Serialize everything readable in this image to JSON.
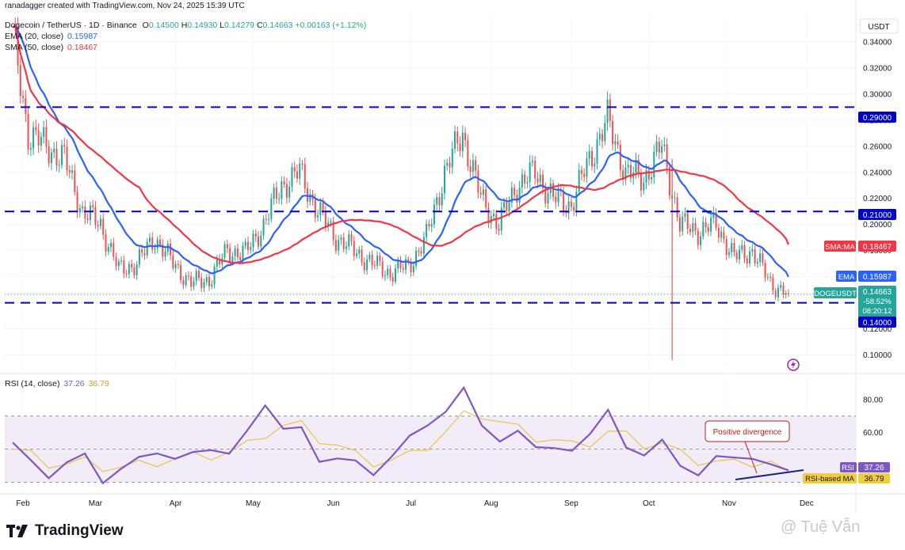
{
  "header": {
    "credit": "ranadagger created with TradingView.com, Nov 24, 2025 15:39 UTC",
    "symbol": "Dogecoin / TetherUS · 1D · Binance",
    "ohlc": {
      "o_label": "O",
      "o": "0.14500",
      "h_label": "H",
      "h": "0.14930",
      "l_label": "L",
      "l": "0.14279",
      "c_label": "C",
      "c": "0.14663",
      "change": "+0.00163 (+1.12%)"
    }
  },
  "indicators": {
    "ema": {
      "label": "EMA (20, close)",
      "value": "0.15987",
      "color": "#2962ff"
    },
    "sma": {
      "label": "SMA (50, close)",
      "value": "0.18467",
      "color": "#f23645"
    },
    "rsi": {
      "label": "RSI (14, close)",
      "value": "37.26",
      "ma_value": "36.79",
      "color": "#7e57c2",
      "ma_color": "#e8c547"
    }
  },
  "currency": "USDT",
  "price_tags": {
    "sma_label": "SMA:MA",
    "sma_value": "0.18467",
    "ema_label": "EMA",
    "ema_value": "0.15987",
    "symbol_label": "DOGEUSDT",
    "price": "0.14663",
    "change_pct": "-58.52%",
    "countdown": "08:20:12",
    "level_290": "0.29000",
    "level_210": "0.21000",
    "level_140": "0.14000",
    "rsi_label": "RSI",
    "rsi_value": "37.26",
    "rsi_ma_label": "RSI-based MA",
    "rsi_ma_value": "36.79"
  },
  "annotation": "Positive divergence",
  "brand": "TradingView",
  "watermark": "@ Tuệ Vẫn",
  "colors": {
    "up": "#26a69a",
    "down": "#ef5350",
    "support": "#0000cc",
    "ema": "#2962ff",
    "sma": "#f23645",
    "rsi": "#7e57c2",
    "rsi_ma": "#e8c547",
    "rsi_band": "#ede7f6"
  },
  "chart_data": [
    {
      "type": "candlestick",
      "title": "Dogecoin / TetherUS · 1D · Binance",
      "y_ticks": [
        "0.34000",
        "0.32000",
        "0.30000",
        "0.28000",
        "0.26000",
        "0.24000",
        "0.22000",
        "0.20000",
        "0.18000",
        "0.16000",
        "0.14000",
        "0.12000",
        "0.10000"
      ],
      "ylim": [
        0.09,
        0.36
      ],
      "x_tick_labels": [
        "Feb",
        "Mar",
        "Apr",
        "May",
        "Jun",
        "Jul",
        "Aug",
        "Sep",
        "Oct",
        "Nov",
        "Dec"
      ],
      "date_range": [
        "2025-01-28",
        "2025-11-24"
      ],
      "horizontal_levels": [
        0.29,
        0.21,
        0.14
      ],
      "close_series": [
        {
          "date": "2025-01-28",
          "close": 0.345
        },
        {
          "date": "2025-02-03",
          "close": 0.27
        },
        {
          "date": "2025-02-10",
          "close": 0.26
        },
        {
          "date": "2025-02-17",
          "close": 0.25
        },
        {
          "date": "2025-02-24",
          "close": 0.21
        },
        {
          "date": "2025-03-03",
          "close": 0.2
        },
        {
          "date": "2025-03-10",
          "close": 0.165
        },
        {
          "date": "2025-03-17",
          "close": 0.17
        },
        {
          "date": "2025-03-24",
          "close": 0.19
        },
        {
          "date": "2025-03-31",
          "close": 0.17
        },
        {
          "date": "2025-04-07",
          "close": 0.155
        },
        {
          "date": "2025-04-14",
          "close": 0.158
        },
        {
          "date": "2025-04-21",
          "close": 0.18
        },
        {
          "date": "2025-04-28",
          "close": 0.178
        },
        {
          "date": "2025-05-05",
          "close": 0.2
        },
        {
          "date": "2025-05-12",
          "close": 0.23
        },
        {
          "date": "2025-05-19",
          "close": 0.24
        },
        {
          "date": "2025-05-26",
          "close": 0.21
        },
        {
          "date": "2025-06-02",
          "close": 0.19
        },
        {
          "date": "2025-06-09",
          "close": 0.18
        },
        {
          "date": "2025-06-16",
          "close": 0.17
        },
        {
          "date": "2025-06-23",
          "close": 0.163
        },
        {
          "date": "2025-06-30",
          "close": 0.168
        },
        {
          "date": "2025-07-07",
          "close": 0.19
        },
        {
          "date": "2025-07-14",
          "close": 0.24
        },
        {
          "date": "2025-07-21",
          "close": 0.27
        },
        {
          "date": "2025-07-28",
          "close": 0.22
        },
        {
          "date": "2025-08-04",
          "close": 0.2
        },
        {
          "date": "2025-08-11",
          "close": 0.23
        },
        {
          "date": "2025-08-18",
          "close": 0.24
        },
        {
          "date": "2025-08-25",
          "close": 0.22
        },
        {
          "date": "2025-09-01",
          "close": 0.215
        },
        {
          "date": "2025-09-08",
          "close": 0.25
        },
        {
          "date": "2025-09-15",
          "close": 0.28
        },
        {
          "date": "2025-09-22",
          "close": 0.24
        },
        {
          "date": "2025-09-29",
          "close": 0.235
        },
        {
          "date": "2025-10-06",
          "close": 0.26
        },
        {
          "date": "2025-10-13",
          "close": 0.2
        },
        {
          "date": "2025-10-20",
          "close": 0.195
        },
        {
          "date": "2025-10-27",
          "close": 0.2
        },
        {
          "date": "2025-11-03",
          "close": 0.175
        },
        {
          "date": "2025-11-10",
          "close": 0.18
        },
        {
          "date": "2025-11-17",
          "close": 0.155
        },
        {
          "date": "2025-11-24",
          "close": 0.14663
        }
      ],
      "series": [
        {
          "name": "EMA (20, close)",
          "last": 0.15987
        },
        {
          "name": "SMA (50, close)",
          "last": 0.18467
        }
      ]
    },
    {
      "type": "line",
      "title": "RSI (14, close)",
      "y_ticks": [
        "80.00",
        "60.00",
        "40.00"
      ],
      "ylim": [
        25,
        88
      ],
      "band": [
        30,
        70
      ],
      "series": [
        {
          "name": "RSI (14, close)",
          "values": [
            54,
            40,
            36,
            42,
            44,
            33,
            38,
            42,
            51,
            44,
            45,
            53,
            47,
            58,
            80,
            62,
            60,
            46,
            44,
            40,
            38,
            45,
            55,
            68,
            72,
            84,
            68,
            54,
            58,
            55,
            50,
            46,
            63,
            73,
            48,
            50,
            55,
            37,
            38,
            45,
            42,
            48,
            40,
            37.26
          ]
        },
        {
          "name": "RSI-based MA",
          "values": [
            50,
            46,
            42,
            41,
            42,
            40,
            39,
            40,
            43,
            44,
            45,
            47,
            48,
            52,
            60,
            64,
            64,
            57,
            52,
            46,
            43,
            43,
            46,
            53,
            60,
            70,
            72,
            66,
            62,
            58,
            55,
            52,
            55,
            60,
            58,
            54,
            53,
            47,
            44,
            42,
            41,
            43,
            42,
            36.79
          ]
        }
      ]
    }
  ]
}
